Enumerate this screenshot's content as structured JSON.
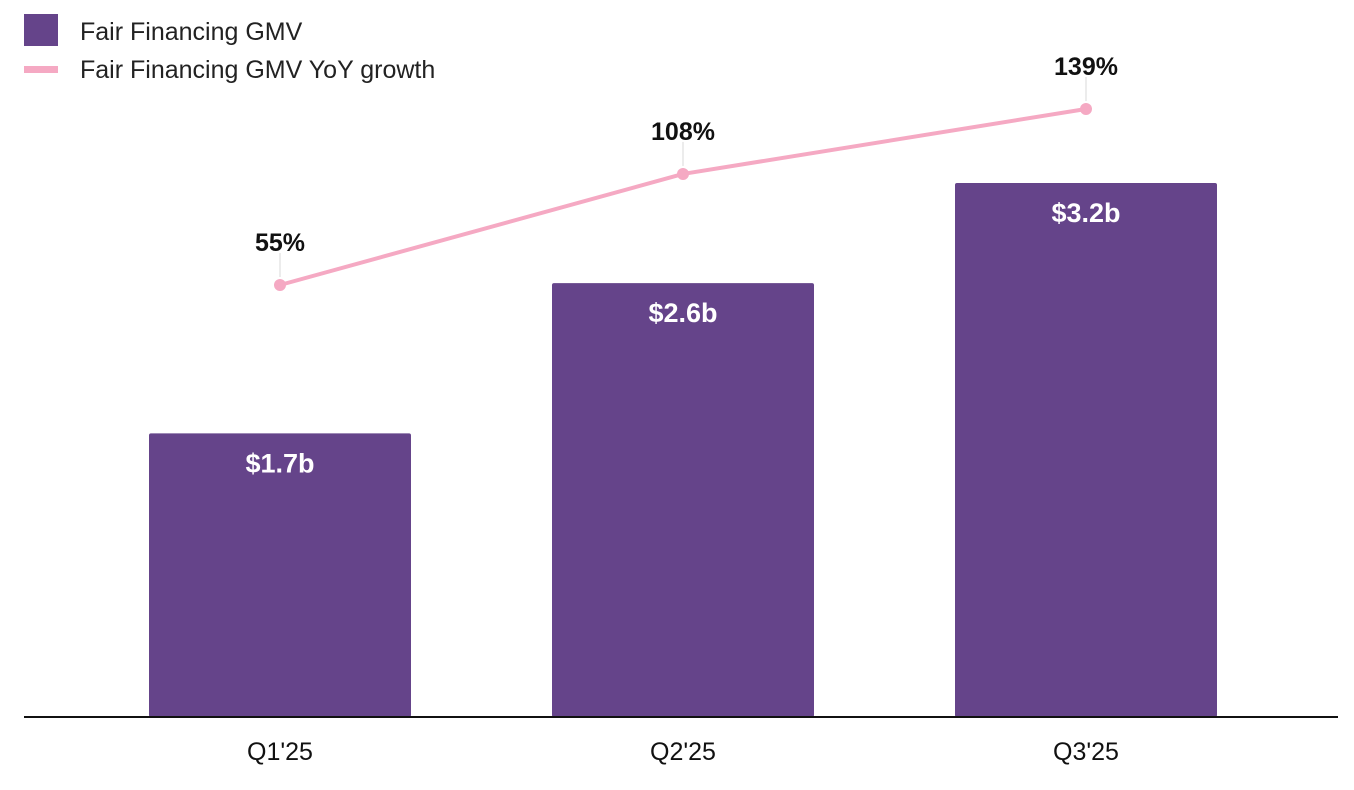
{
  "chart_data": {
    "type": "bar",
    "categories": [
      "Q1'25",
      "Q2'25",
      "Q3'25"
    ],
    "series": [
      {
        "name": "Fair Financing GMV",
        "kind": "bar",
        "values": [
          1.7,
          2.6,
          3.2
        ],
        "labels": [
          "$1.7b",
          "$2.6b",
          "$3.2b"
        ],
        "color": "#65448A"
      },
      {
        "name": "Fair Financing GMV YoY growth",
        "kind": "line",
        "values": [
          55,
          108,
          139
        ],
        "labels": [
          "55%",
          "108%",
          "139%"
        ],
        "color": "#F5A9C3"
      }
    ],
    "legend_position": "top-left",
    "grid": false
  }
}
